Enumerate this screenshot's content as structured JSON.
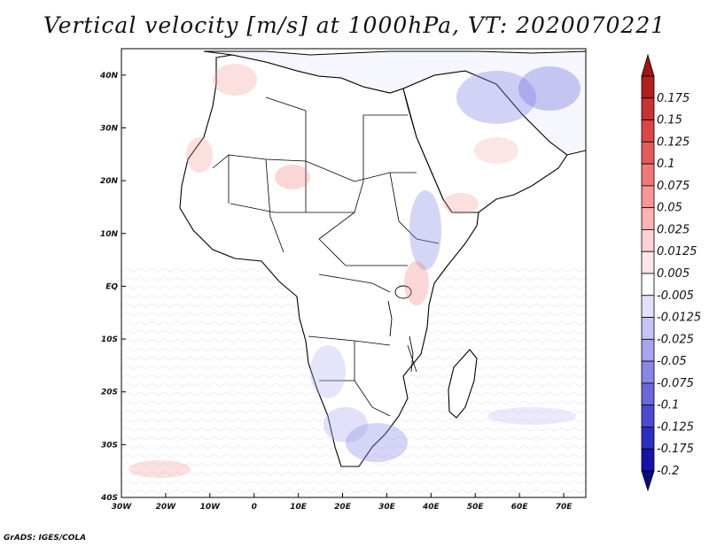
{
  "title": "Vertical velocity [m/s] at 1000hPa, VT: 2020070221",
  "credit": "GrADS: IGES/COLA",
  "map": {
    "lon_range": [
      -30,
      75
    ],
    "lat_range": [
      -40,
      45
    ],
    "x_ticks": [
      {
        "value": -30,
        "label": "30W"
      },
      {
        "value": -20,
        "label": "20W"
      },
      {
        "value": -10,
        "label": "10W"
      },
      {
        "value": 0,
        "label": "0"
      },
      {
        "value": 10,
        "label": "10E"
      },
      {
        "value": 20,
        "label": "20E"
      },
      {
        "value": 30,
        "label": "30E"
      },
      {
        "value": 40,
        "label": "40E"
      },
      {
        "value": 50,
        "label": "50E"
      },
      {
        "value": 60,
        "label": "60E"
      },
      {
        "value": 70,
        "label": "70E"
      }
    ],
    "y_ticks": [
      {
        "value": 40,
        "label": "40N"
      },
      {
        "value": 30,
        "label": "30N"
      },
      {
        "value": 20,
        "label": "20N"
      },
      {
        "value": 10,
        "label": "10N"
      },
      {
        "value": 0,
        "label": "EQ"
      },
      {
        "value": -10,
        "label": "10S"
      },
      {
        "value": -20,
        "label": "20S"
      },
      {
        "value": -30,
        "label": "30S"
      },
      {
        "value": -40,
        "label": "40S"
      }
    ]
  },
  "colorbar": {
    "levels": [
      {
        "label": "0.175",
        "color": "#b41e1e"
      },
      {
        "label": "0.15",
        "color": "#c83232"
      },
      {
        "label": "0.125",
        "color": "#dc4646"
      },
      {
        "label": "0.1",
        "color": "#e65a5a"
      },
      {
        "label": "0.075",
        "color": "#f07878"
      },
      {
        "label": "0.05",
        "color": "#f69696"
      },
      {
        "label": "0.025",
        "color": "#fab4b4"
      },
      {
        "label": "0.0125",
        "color": "#fcd2d2"
      },
      {
        "label": "0.005",
        "color": "#fee6e6"
      },
      {
        "label": "-0.005",
        "color": "#ffffff"
      },
      {
        "label": "-0.0125",
        "color": "#e1e1fa"
      },
      {
        "label": "-0.025",
        "color": "#c3c3f5"
      },
      {
        "label": "-0.05",
        "color": "#a5a5f0"
      },
      {
        "label": "-0.075",
        "color": "#8787e6"
      },
      {
        "label": "-0.1",
        "color": "#6969dc"
      },
      {
        "label": "-0.125",
        "color": "#4b4bd2"
      },
      {
        "label": "-0.175",
        "color": "#2d2dc3"
      },
      {
        "label": "-0.2",
        "color": "#1414aa"
      }
    ],
    "top_arrow_color": "#a01414",
    "bottom_arrow_color": "#0a0a8c"
  }
}
